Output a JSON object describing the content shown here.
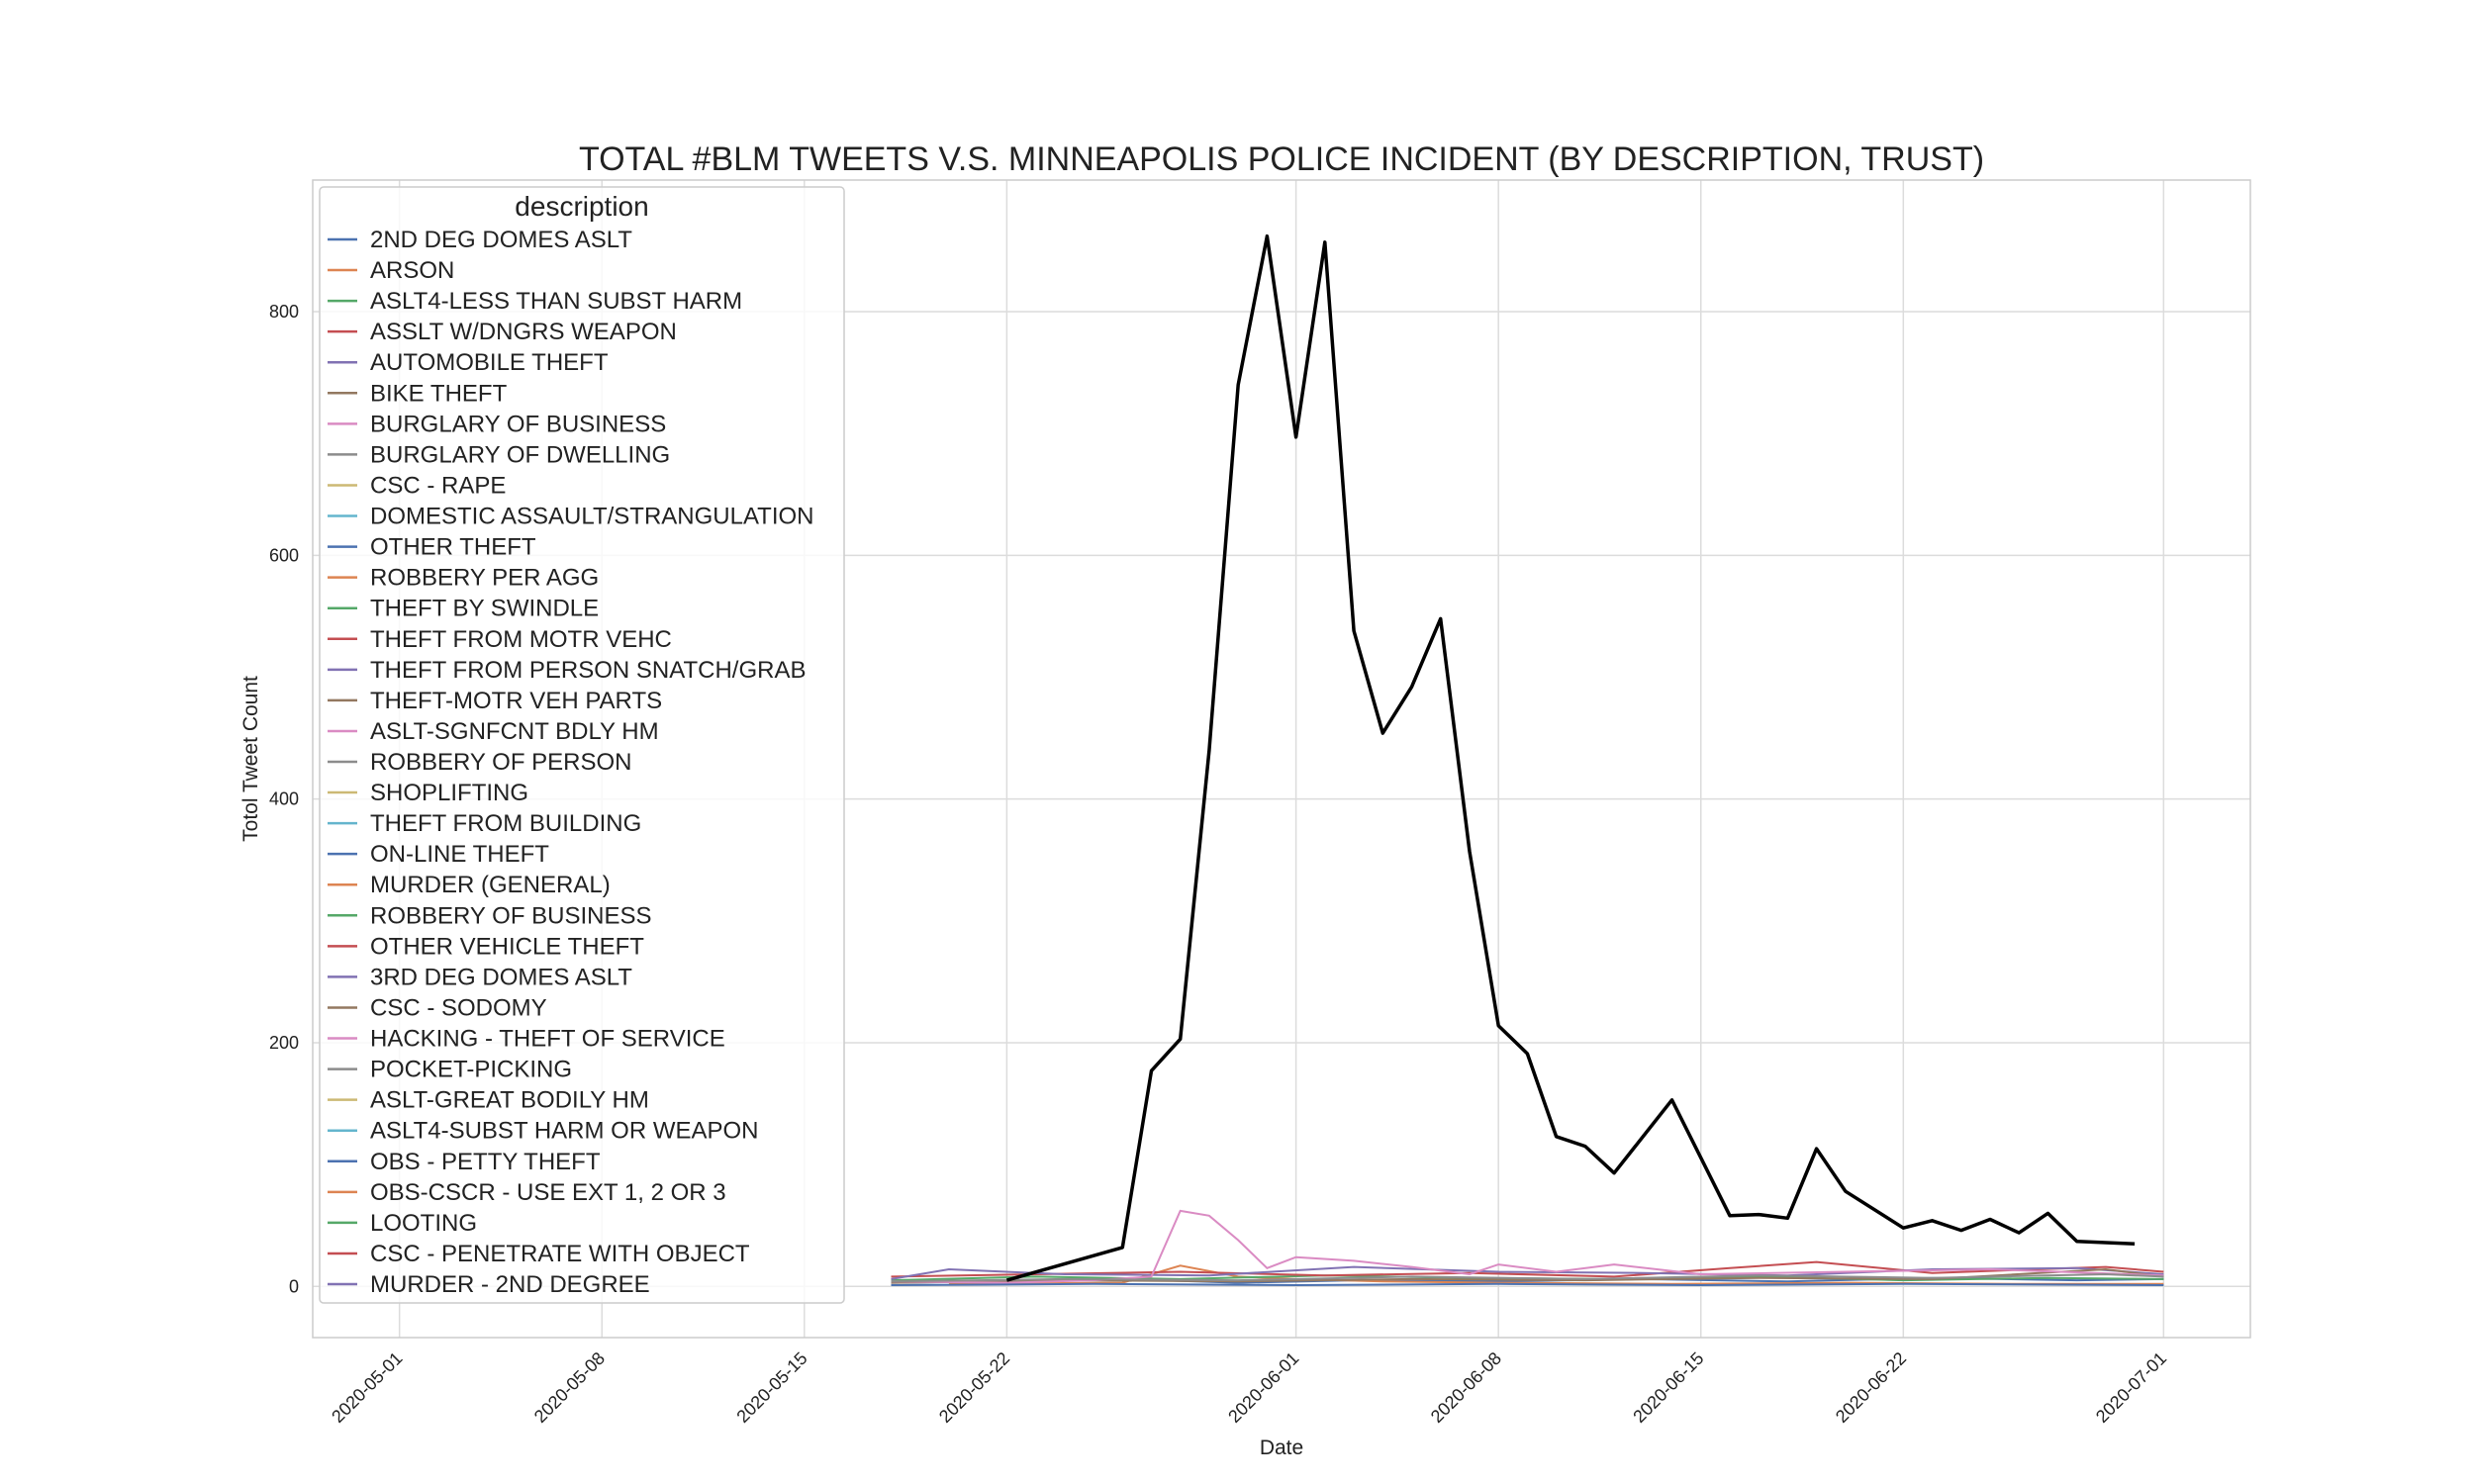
{
  "chart_data": {
    "type": "line",
    "title": "TOTAL #BLM TWEETS V.S. MINNEAPOLIS POLICE INCIDENT (BY DESCRIPTION, TRUST)",
    "xlabel": "Date",
    "ylabel": "Totol Tweet Count",
    "x_ticks": [
      "2020-05-01",
      "2020-05-08",
      "2020-05-15",
      "2020-05-22",
      "2020-06-01",
      "2020-06-08",
      "2020-06-15",
      "2020-06-22",
      "2020-07-01"
    ],
    "y_ticks": [
      0,
      200,
      400,
      600,
      800
    ],
    "xlim": [
      "2020-04-28",
      "2020-07-04"
    ],
    "ylim": [
      -42,
      908
    ],
    "grid": true,
    "legend": {
      "title": "description",
      "placement": "top-left",
      "entries": [
        {
          "name": "2ND DEG DOMES ASLT",
          "color": "#4c72b0"
        },
        {
          "name": "ARSON",
          "color": "#dd8452"
        },
        {
          "name": "ASLT4-LESS THAN SUBST HARM",
          "color": "#55a868"
        },
        {
          "name": "ASSLT W/DNGRS WEAPON",
          "color": "#c44e52"
        },
        {
          "name": "AUTOMOBILE THEFT",
          "color": "#8172b3"
        },
        {
          "name": "BIKE THEFT",
          "color": "#937860"
        },
        {
          "name": "BURGLARY OF BUSINESS",
          "color": "#da8bc3"
        },
        {
          "name": "BURGLARY OF DWELLING",
          "color": "#8c8c8c"
        },
        {
          "name": "CSC - RAPE",
          "color": "#ccb974"
        },
        {
          "name": "DOMESTIC ASSAULT/STRANGULATION",
          "color": "#64b5cd"
        },
        {
          "name": "OTHER THEFT",
          "color": "#4c72b0"
        },
        {
          "name": "ROBBERY PER AGG",
          "color": "#dd8452"
        },
        {
          "name": "THEFT BY SWINDLE",
          "color": "#55a868"
        },
        {
          "name": "THEFT FROM MOTR VEHC",
          "color": "#c44e52"
        },
        {
          "name": "THEFT FROM PERSON SNATCH/GRAB",
          "color": "#8172b3"
        },
        {
          "name": "THEFT-MOTR VEH PARTS",
          "color": "#937860"
        },
        {
          "name": "ASLT-SGNFCNT BDLY HM",
          "color": "#da8bc3"
        },
        {
          "name": "ROBBERY OF PERSON",
          "color": "#8c8c8c"
        },
        {
          "name": "SHOPLIFTING",
          "color": "#ccb974"
        },
        {
          "name": "THEFT FROM BUILDING",
          "color": "#64b5cd"
        },
        {
          "name": "ON-LINE THEFT",
          "color": "#4c72b0"
        },
        {
          "name": "MURDER (GENERAL)",
          "color": "#dd8452"
        },
        {
          "name": "ROBBERY OF BUSINESS",
          "color": "#55a868"
        },
        {
          "name": "OTHER VEHICLE THEFT",
          "color": "#c44e52"
        },
        {
          "name": "3RD DEG DOMES ASLT",
          "color": "#8172b3"
        },
        {
          "name": "CSC - SODOMY",
          "color": "#937860"
        },
        {
          "name": "HACKING - THEFT OF SERVICE",
          "color": "#da8bc3"
        },
        {
          "name": "POCKET-PICKING",
          "color": "#8c8c8c"
        },
        {
          "name": "ASLT-GREAT BODILY HM",
          "color": "#ccb974"
        },
        {
          "name": "ASLT4-SUBST HARM OR WEAPON",
          "color": "#64b5cd"
        },
        {
          "name": "OBS - PETTY THEFT",
          "color": "#4c72b0"
        },
        {
          "name": "OBS-CSCR - USE EXT 1, 2 OR 3",
          "color": "#dd8452"
        },
        {
          "name": "LOOTING",
          "color": "#55a868"
        },
        {
          "name": "CSC - PENETRATE WITH OBJECT",
          "color": "#c44e52"
        },
        {
          "name": "MURDER - 2ND DEGREE",
          "color": "#8172b3"
        }
      ]
    },
    "tweet_series": {
      "color": "#000000",
      "x": [
        "2020-05-22",
        "2020-05-26",
        "2020-05-27",
        "2020-05-28",
        "2020-05-29",
        "2020-05-30",
        "2020-05-31",
        "2020-06-01",
        "2020-06-02",
        "2020-06-03",
        "2020-06-04",
        "2020-06-05",
        "2020-06-06",
        "2020-06-07",
        "2020-06-08",
        "2020-06-09",
        "2020-06-10",
        "2020-06-11",
        "2020-06-12",
        "2020-06-14",
        "2020-06-16",
        "2020-06-17",
        "2020-06-18",
        "2020-06-19",
        "2020-06-20",
        "2020-06-22",
        "2020-06-23",
        "2020-06-24",
        "2020-06-25",
        "2020-06-26",
        "2020-06-27",
        "2020-06-28",
        "2020-06-30"
      ],
      "values": [
        5,
        32,
        177,
        203,
        440,
        740,
        862,
        697,
        857,
        538,
        454,
        492,
        548,
        357,
        214,
        191,
        123,
        115,
        93,
        153,
        58,
        59,
        56,
        113,
        78,
        48,
        54,
        46,
        55,
        44,
        60,
        37,
        35
      ]
    },
    "incident_series": [
      {
        "name": "2ND DEG DOMES ASLT",
        "color": "#4c72b0",
        "x": [
          "2020-05-18",
          "2020-05-22",
          "2020-05-26",
          "2020-05-30",
          "2020-06-03",
          "2020-06-08",
          "2020-06-13",
          "2020-06-18",
          "2020-06-23",
          "2020-06-28",
          "2020-07-01"
        ],
        "values": [
          3,
          4,
          6,
          3,
          5,
          4,
          6,
          4,
          7,
          5,
          6
        ]
      },
      {
        "name": "ARSON",
        "color": "#dd8452",
        "x": [
          "2020-05-20",
          "2020-05-26",
          "2020-05-28",
          "2020-05-30",
          "2020-06-01",
          "2020-06-04",
          "2020-06-08",
          "2020-06-14",
          "2020-06-20",
          "2020-06-26",
          "2020-07-01"
        ],
        "values": [
          2,
          3,
          17,
          8,
          6,
          4,
          3,
          2,
          3,
          2,
          2
        ]
      },
      {
        "name": "ASLT4-LESS THAN SUBST HARM",
        "color": "#55a868",
        "x": [
          "2020-05-18",
          "2020-05-23",
          "2020-05-28",
          "2020-06-02",
          "2020-06-07",
          "2020-06-12",
          "2020-06-17",
          "2020-06-22",
          "2020-06-27",
          "2020-07-01"
        ],
        "values": [
          5,
          8,
          6,
          9,
          7,
          6,
          8,
          5,
          7,
          6
        ]
      },
      {
        "name": "ASSLT W/DNGRS WEAPON",
        "color": "#c44e52",
        "x": [
          "2020-05-18",
          "2020-05-23",
          "2020-05-28",
          "2020-06-02",
          "2020-06-07",
          "2020-06-12",
          "2020-06-16",
          "2020-06-19",
          "2020-06-23",
          "2020-06-29",
          "2020-07-01"
        ],
        "values": [
          8,
          10,
          12,
          9,
          11,
          8,
          15,
          20,
          11,
          16,
          12
        ]
      },
      {
        "name": "AUTOMOBILE THEFT",
        "color": "#8172b3",
        "x": [
          "2020-05-18",
          "2020-05-20",
          "2020-05-24",
          "2020-05-29",
          "2020-06-03",
          "2020-06-08",
          "2020-06-13",
          "2020-06-18",
          "2020-06-23",
          "2020-06-28",
          "2020-07-01"
        ],
        "values": [
          6,
          14,
          10,
          9,
          16,
          12,
          11,
          9,
          14,
          15,
          10
        ]
      },
      {
        "name": "BIKE THEFT",
        "color": "#937860",
        "x": [
          "2020-05-18",
          "2020-05-24",
          "2020-05-30",
          "2020-06-05",
          "2020-06-11",
          "2020-06-17",
          "2020-06-23",
          "2020-06-29",
          "2020-07-01"
        ],
        "values": [
          3,
          5,
          4,
          6,
          5,
          7,
          6,
          14,
          8
        ]
      },
      {
        "name": "ASLT-SGNFCNT BDLY HM",
        "color": "#da8bc3",
        "x": [
          "2020-05-18",
          "2020-05-22",
          "2020-05-25",
          "2020-05-27",
          "2020-05-28",
          "2020-05-29",
          "2020-05-30",
          "2020-05-31",
          "2020-06-01",
          "2020-06-03",
          "2020-06-05",
          "2020-06-07",
          "2020-06-08",
          "2020-06-10",
          "2020-06-12",
          "2020-06-15",
          "2020-06-20",
          "2020-06-25",
          "2020-07-01"
        ],
        "values": [
          4,
          3,
          5,
          8,
          62,
          58,
          38,
          15,
          24,
          21,
          16,
          10,
          18,
          12,
          18,
          10,
          12,
          14,
          9
        ]
      },
      {
        "name": "BURGLARY OF DWELLING",
        "color": "#8c8c8c",
        "x": [
          "2020-05-18",
          "2020-05-24",
          "2020-05-30",
          "2020-06-05",
          "2020-06-11",
          "2020-06-17",
          "2020-06-23",
          "2020-06-29",
          "2020-07-01"
        ],
        "values": [
          4,
          6,
          5,
          8,
          6,
          9,
          7,
          10,
          8
        ]
      },
      {
        "name": "OTHER THEFT",
        "color": "#4c72b0",
        "x": [
          "2020-05-18",
          "2020-05-25",
          "2020-06-01",
          "2020-06-08",
          "2020-06-15",
          "2020-06-22",
          "2020-07-01"
        ],
        "values": [
          1,
          2,
          1,
          2,
          1,
          2,
          1
        ]
      }
    ]
  }
}
